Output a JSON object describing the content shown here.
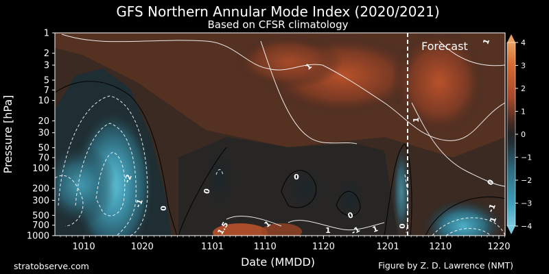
{
  "chart_data": {
    "type": "heatmap",
    "title": "GFS Northern Annular Mode Index (2020/2021)",
    "subtitle": "Based on CFSR climatology",
    "xlabel": "Date (MMDD)",
    "ylabel": "Pressure [hPa]",
    "x_ticks": [
      "1010",
      "1020",
      "1101",
      "1110",
      "1120",
      "1201",
      "1210",
      "1220"
    ],
    "y_ticks": [
      "1",
      "2",
      "3",
      "5",
      "7",
      "10",
      "20",
      "30",
      "50",
      "70",
      "100",
      "200",
      "300",
      "500",
      "700",
      "1000"
    ],
    "y_scale": "log",
    "ylim": [
      1000,
      1
    ],
    "colorbar": {
      "ticks": [
        "4",
        "3",
        "2",
        "1",
        "0",
        "−1",
        "−2",
        "−3",
        "−4"
      ],
      "range": [
        -4,
        4
      ]
    },
    "contour_labels": [
      "-2",
      "-1",
      "0",
      "0",
      "0",
      "0",
      "0",
      "0",
      "1",
      "1",
      "1",
      "1",
      "1",
      "1",
      "1",
      "-1",
      "-1",
      "1.5"
    ],
    "annotation": "Forecast",
    "colors": {
      "positive": "#c2532a",
      "neutral": "#262626",
      "negative": "#3f9fb8"
    }
  },
  "footer": {
    "left": "stratobserve.com",
    "right": "Figure by Z. D. Lawrence (NMT)"
  }
}
